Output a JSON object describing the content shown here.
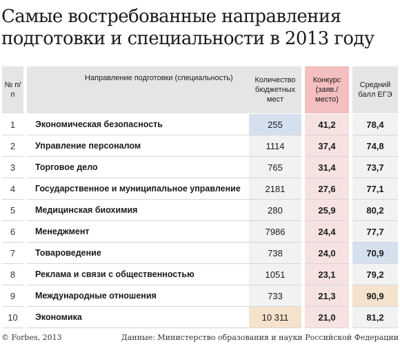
{
  "title": "Самые востребованные направления подготовки и специальности в 2013 году",
  "headers": {
    "num": "№ п/п",
    "direction": "Направление подготовки (специальность)",
    "count": "Количество бюджетных мест",
    "contest": "Конкурс (заяв./ место)",
    "ege": "Средний балл ЕГЭ"
  },
  "rows": [
    {
      "num": "1",
      "name": "Экономическая безопасность",
      "count": "255",
      "contest": "41,2",
      "ege": "78,4"
    },
    {
      "num": "2",
      "name": "Управление персоналом",
      "count": "1114",
      "contest": "37,4",
      "ege": "74,8"
    },
    {
      "num": "3",
      "name": "Торговое дело",
      "count": "765",
      "contest": "31,4",
      "ege": "73,7"
    },
    {
      "num": "4",
      "name": "Государственное и муниципальное управление",
      "count": "2181",
      "contest": "27,6",
      "ege": "77,1"
    },
    {
      "num": "5",
      "name": "Медицинская биохимия",
      "count": "280",
      "contest": "25,9",
      "ege": "80,2"
    },
    {
      "num": "6",
      "name": "Менеджмент",
      "count": "7986",
      "contest": "24,4",
      "ege": "77,7"
    },
    {
      "num": "7",
      "name": "Товароведение",
      "count": "738",
      "contest": "24,0",
      "ege": "70,9"
    },
    {
      "num": "8",
      "name": "Реклама и связи с общественностью",
      "count": "1051",
      "contest": "23,1",
      "ege": "79,2"
    },
    {
      "num": "9",
      "name": "Международные отношения",
      "count": "733",
      "contest": "21,3",
      "ege": "90,9"
    },
    {
      "num": "10",
      "name": "Экономика",
      "count": "10 311",
      "contest": "21,0",
      "ege": "81,2"
    }
  ],
  "highlights": {
    "min": "#d5e0ef",
    "max": "#f4e2cc"
  },
  "footer": {
    "copyright": "© Forbes, 2013",
    "source": "Данные: Министерство образования и науки Российской Федерации"
  }
}
